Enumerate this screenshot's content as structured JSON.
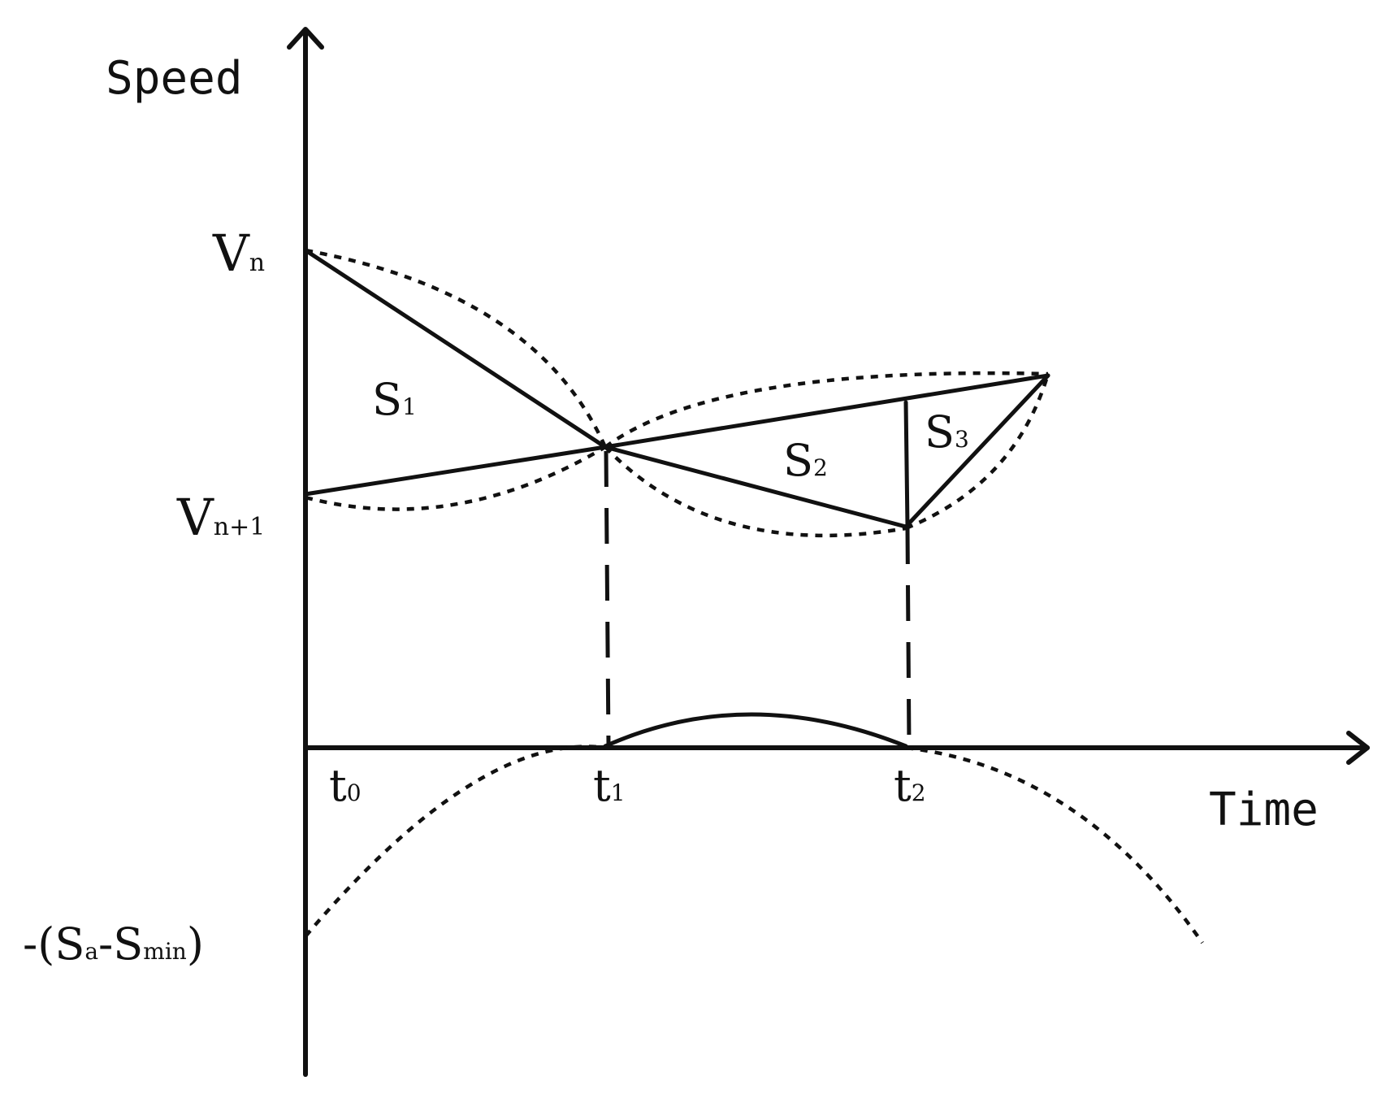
{
  "axes": {
    "y_title": "Speed",
    "x_title": "Time"
  },
  "y_labels": {
    "vn": {
      "main": "V",
      "sub": "n"
    },
    "vn1": {
      "main": "V",
      "sub": "n+1"
    },
    "neg": {
      "prefix": "-(S",
      "sub_a": "a",
      "middle": "-S",
      "sub_min": "min",
      "suffix": ")"
    }
  },
  "t_labels": [
    {
      "main": "t",
      "sub": "0"
    },
    {
      "main": "t",
      "sub": "1"
    },
    {
      "main": "t",
      "sub": "2"
    }
  ],
  "regions": [
    {
      "main": "S",
      "sub": "1"
    },
    {
      "main": "S",
      "sub": "2"
    },
    {
      "main": "S",
      "sub": "3"
    }
  ]
}
